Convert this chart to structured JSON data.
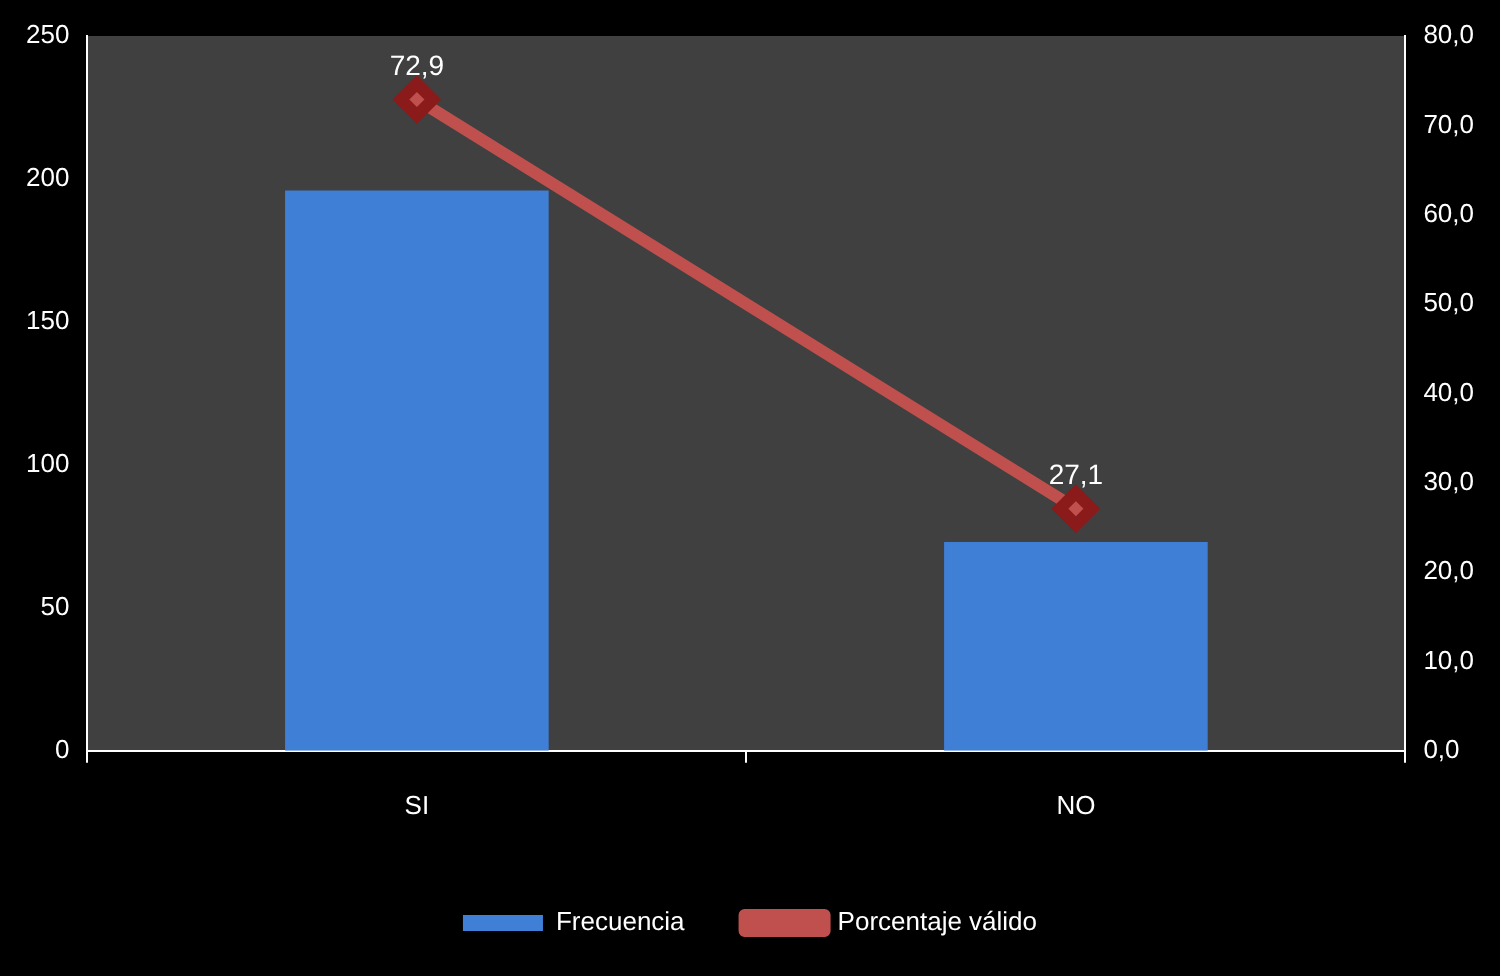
{
  "chart_data": {
    "type": "bar",
    "categories": [
      "SI",
      "NO"
    ],
    "series": [
      {
        "name": "Frecuencia",
        "color": "#3f7fd6",
        "values": [
          196,
          73
        ]
      },
      {
        "name": "Porcentaje válido",
        "type": "line",
        "axis": "y2",
        "color": "#c0504d",
        "values": [
          72.9,
          27.1
        ],
        "value_labels": [
          "72,9",
          "27,1"
        ]
      }
    ],
    "ylim": [
      0,
      250
    ],
    "yticks": [
      0,
      50,
      100,
      150,
      200,
      250
    ],
    "y2lim": [
      0,
      80
    ],
    "y2ticks": [
      {
        "value": 0,
        "label": "0,0"
      },
      {
        "value": 10,
        "label": "10,0"
      },
      {
        "value": 20,
        "label": "20,0"
      },
      {
        "value": 30,
        "label": "30,0"
      },
      {
        "value": 40,
        "label": "40,0"
      },
      {
        "value": 50,
        "label": "50,0"
      },
      {
        "value": 60,
        "label": "60,0"
      },
      {
        "value": 70,
        "label": "70,0"
      },
      {
        "value": 80,
        "label": "80,0"
      }
    ],
    "marker": "diamond",
    "legend": "bottom"
  }
}
